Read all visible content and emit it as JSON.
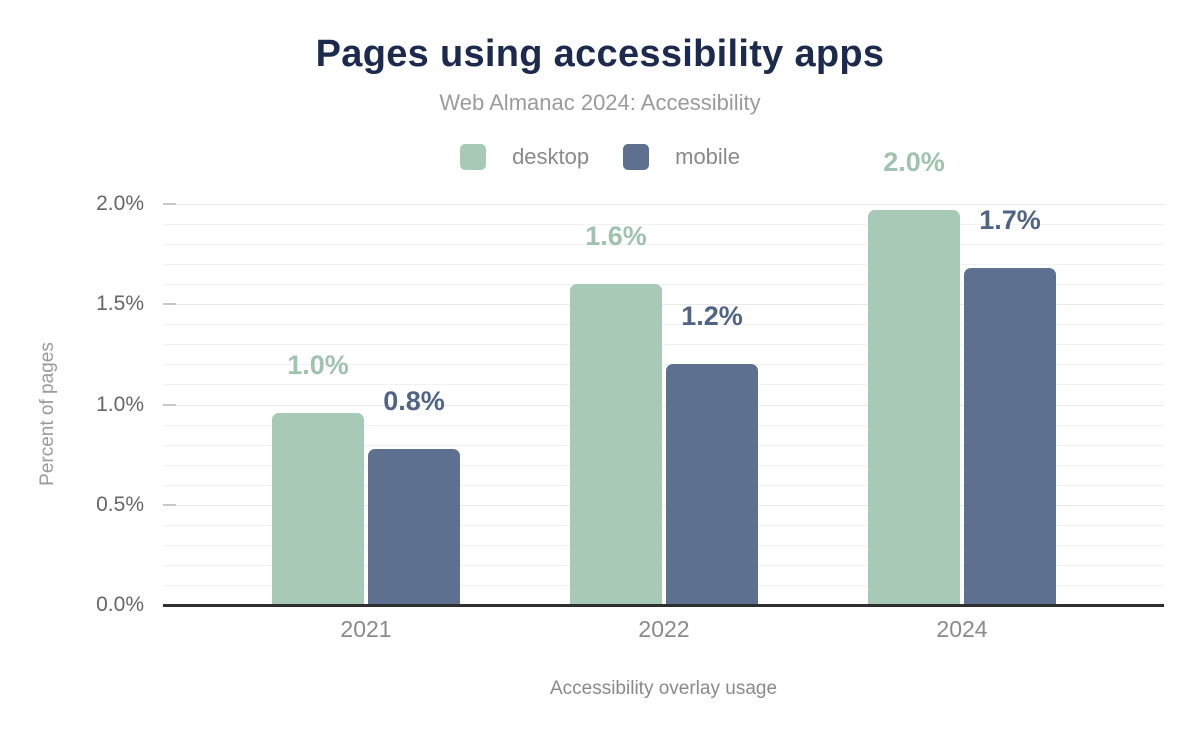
{
  "header": {
    "title": "Pages using accessibility apps",
    "subtitle": "Web Almanac 2024: Accessibility"
  },
  "chart_data": {
    "type": "bar",
    "title": "Pages using accessibility apps",
    "subtitle": "Web Almanac 2024: Accessibility",
    "xlabel": "Accessibility overlay usage",
    "ylabel": "Percent of pages",
    "categories": [
      "2021",
      "2022",
      "2024"
    ],
    "series": [
      {
        "name": "desktop",
        "values": [
          0.96,
          1.6,
          1.97
        ],
        "labels": [
          "1.0%",
          "1.6%",
          "2.0%"
        ],
        "color": "#a7c9b5",
        "label_color": "#9fc3ae"
      },
      {
        "name": "mobile",
        "values": [
          0.78,
          1.2,
          1.68
        ],
        "labels": [
          "0.8%",
          "1.2%",
          "1.7%"
        ],
        "color": "#5e7090",
        "label_color": "#506487"
      }
    ],
    "ylim": [
      0,
      2.0
    ],
    "yticks": [
      {
        "value": 0,
        "label": "0.0%"
      },
      {
        "value": 0.5,
        "label": "0.5%"
      },
      {
        "value": 1.0,
        "label": "1.0%"
      },
      {
        "value": 1.5,
        "label": "1.5%"
      },
      {
        "value": 2.0,
        "label": "2.0%"
      }
    ],
    "minor_gridline_step": 0.1,
    "grid": true,
    "legend_position": "top"
  },
  "colors": {
    "title": "#1c2b4d",
    "subtitle": "#9b9b9b",
    "legend_text": "#8a8a8a",
    "y_tick_text": "#666666",
    "x_tick_text": "#8a8a8a",
    "axis_title_text": "#9b9b9b",
    "gridline_minor": "#f2f2f2",
    "gridline_major": "#e9e9e9",
    "tick_mark": "#c9c9c9",
    "baseline": "#2f2f2f",
    "background": "#ffffff"
  }
}
